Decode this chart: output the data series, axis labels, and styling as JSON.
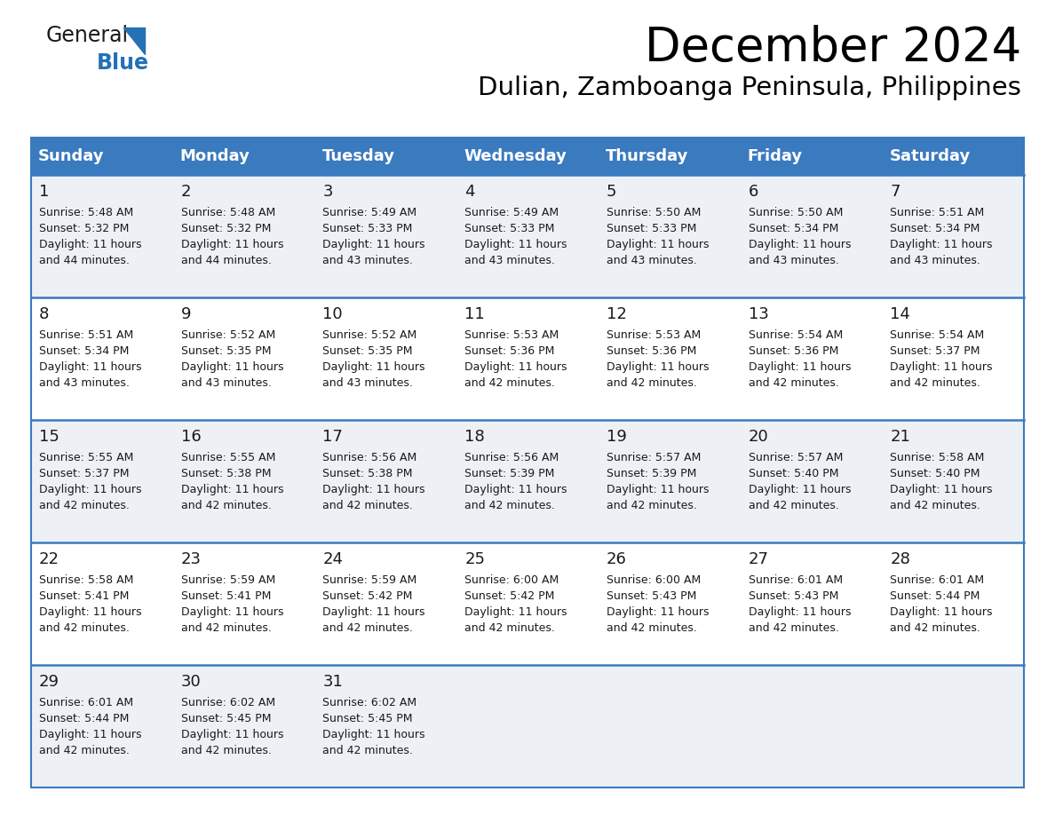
{
  "title": "December 2024",
  "subtitle": "Dulian, Zamboanga Peninsula, Philippines",
  "header_bg_color": "#3a7abf",
  "header_text_color": "#ffffff",
  "day_headers": [
    "Sunday",
    "Monday",
    "Tuesday",
    "Wednesday",
    "Thursday",
    "Friday",
    "Saturday"
  ],
  "row_bg_colors": [
    "#edf1f5",
    "#ffffff",
    "#edf1f5",
    "#ffffff",
    "#edf1f5"
  ],
  "calendar_data": [
    [
      {
        "day": 1,
        "sunrise": "5:48 AM",
        "sunset": "5:32 PM",
        "daylight_line1": "Daylight: 11 hours",
        "daylight_line2": "and 44 minutes."
      },
      {
        "day": 2,
        "sunrise": "5:48 AM",
        "sunset": "5:32 PM",
        "daylight_line1": "Daylight: 11 hours",
        "daylight_line2": "and 44 minutes."
      },
      {
        "day": 3,
        "sunrise": "5:49 AM",
        "sunset": "5:33 PM",
        "daylight_line1": "Daylight: 11 hours",
        "daylight_line2": "and 43 minutes."
      },
      {
        "day": 4,
        "sunrise": "5:49 AM",
        "sunset": "5:33 PM",
        "daylight_line1": "Daylight: 11 hours",
        "daylight_line2": "and 43 minutes."
      },
      {
        "day": 5,
        "sunrise": "5:50 AM",
        "sunset": "5:33 PM",
        "daylight_line1": "Daylight: 11 hours",
        "daylight_line2": "and 43 minutes."
      },
      {
        "day": 6,
        "sunrise": "5:50 AM",
        "sunset": "5:34 PM",
        "daylight_line1": "Daylight: 11 hours",
        "daylight_line2": "and 43 minutes."
      },
      {
        "day": 7,
        "sunrise": "5:51 AM",
        "sunset": "5:34 PM",
        "daylight_line1": "Daylight: 11 hours",
        "daylight_line2": "and 43 minutes."
      }
    ],
    [
      {
        "day": 8,
        "sunrise": "5:51 AM",
        "sunset": "5:34 PM",
        "daylight_line1": "Daylight: 11 hours",
        "daylight_line2": "and 43 minutes."
      },
      {
        "day": 9,
        "sunrise": "5:52 AM",
        "sunset": "5:35 PM",
        "daylight_line1": "Daylight: 11 hours",
        "daylight_line2": "and 43 minutes."
      },
      {
        "day": 10,
        "sunrise": "5:52 AM",
        "sunset": "5:35 PM",
        "daylight_line1": "Daylight: 11 hours",
        "daylight_line2": "and 43 minutes."
      },
      {
        "day": 11,
        "sunrise": "5:53 AM",
        "sunset": "5:36 PM",
        "daylight_line1": "Daylight: 11 hours",
        "daylight_line2": "and 42 minutes."
      },
      {
        "day": 12,
        "sunrise": "5:53 AM",
        "sunset": "5:36 PM",
        "daylight_line1": "Daylight: 11 hours",
        "daylight_line2": "and 42 minutes."
      },
      {
        "day": 13,
        "sunrise": "5:54 AM",
        "sunset": "5:36 PM",
        "daylight_line1": "Daylight: 11 hours",
        "daylight_line2": "and 42 minutes."
      },
      {
        "day": 14,
        "sunrise": "5:54 AM",
        "sunset": "5:37 PM",
        "daylight_line1": "Daylight: 11 hours",
        "daylight_line2": "and 42 minutes."
      }
    ],
    [
      {
        "day": 15,
        "sunrise": "5:55 AM",
        "sunset": "5:37 PM",
        "daylight_line1": "Daylight: 11 hours",
        "daylight_line2": "and 42 minutes."
      },
      {
        "day": 16,
        "sunrise": "5:55 AM",
        "sunset": "5:38 PM",
        "daylight_line1": "Daylight: 11 hours",
        "daylight_line2": "and 42 minutes."
      },
      {
        "day": 17,
        "sunrise": "5:56 AM",
        "sunset": "5:38 PM",
        "daylight_line1": "Daylight: 11 hours",
        "daylight_line2": "and 42 minutes."
      },
      {
        "day": 18,
        "sunrise": "5:56 AM",
        "sunset": "5:39 PM",
        "daylight_line1": "Daylight: 11 hours",
        "daylight_line2": "and 42 minutes."
      },
      {
        "day": 19,
        "sunrise": "5:57 AM",
        "sunset": "5:39 PM",
        "daylight_line1": "Daylight: 11 hours",
        "daylight_line2": "and 42 minutes."
      },
      {
        "day": 20,
        "sunrise": "5:57 AM",
        "sunset": "5:40 PM",
        "daylight_line1": "Daylight: 11 hours",
        "daylight_line2": "and 42 minutes."
      },
      {
        "day": 21,
        "sunrise": "5:58 AM",
        "sunset": "5:40 PM",
        "daylight_line1": "Daylight: 11 hours",
        "daylight_line2": "and 42 minutes."
      }
    ],
    [
      {
        "day": 22,
        "sunrise": "5:58 AM",
        "sunset": "5:41 PM",
        "daylight_line1": "Daylight: 11 hours",
        "daylight_line2": "and 42 minutes."
      },
      {
        "day": 23,
        "sunrise": "5:59 AM",
        "sunset": "5:41 PM",
        "daylight_line1": "Daylight: 11 hours",
        "daylight_line2": "and 42 minutes."
      },
      {
        "day": 24,
        "sunrise": "5:59 AM",
        "sunset": "5:42 PM",
        "daylight_line1": "Daylight: 11 hours",
        "daylight_line2": "and 42 minutes."
      },
      {
        "day": 25,
        "sunrise": "6:00 AM",
        "sunset": "5:42 PM",
        "daylight_line1": "Daylight: 11 hours",
        "daylight_line2": "and 42 minutes."
      },
      {
        "day": 26,
        "sunrise": "6:00 AM",
        "sunset": "5:43 PM",
        "daylight_line1": "Daylight: 11 hours",
        "daylight_line2": "and 42 minutes."
      },
      {
        "day": 27,
        "sunrise": "6:01 AM",
        "sunset": "5:43 PM",
        "daylight_line1": "Daylight: 11 hours",
        "daylight_line2": "and 42 minutes."
      },
      {
        "day": 28,
        "sunrise": "6:01 AM",
        "sunset": "5:44 PM",
        "daylight_line1": "Daylight: 11 hours",
        "daylight_line2": "and 42 minutes."
      }
    ],
    [
      {
        "day": 29,
        "sunrise": "6:01 AM",
        "sunset": "5:44 PM",
        "daylight_line1": "Daylight: 11 hours",
        "daylight_line2": "and 42 minutes."
      },
      {
        "day": 30,
        "sunrise": "6:02 AM",
        "sunset": "5:45 PM",
        "daylight_line1": "Daylight: 11 hours",
        "daylight_line2": "and 42 minutes."
      },
      {
        "day": 31,
        "sunrise": "6:02 AM",
        "sunset": "5:45 PM",
        "daylight_line1": "Daylight: 11 hours",
        "daylight_line2": "and 42 minutes."
      },
      null,
      null,
      null,
      null
    ]
  ],
  "logo_color_general": "#1a1a1a",
  "logo_color_blue": "#2471b5",
  "logo_triangle_color": "#2471b5",
  "title_fontsize": 38,
  "subtitle_fontsize": 21,
  "header_fontsize": 13,
  "day_num_fontsize": 13,
  "cell_text_fontsize": 9,
  "border_color": "#3a7abf",
  "line_color": "#3a7abf",
  "text_color": "#1a1a1a"
}
